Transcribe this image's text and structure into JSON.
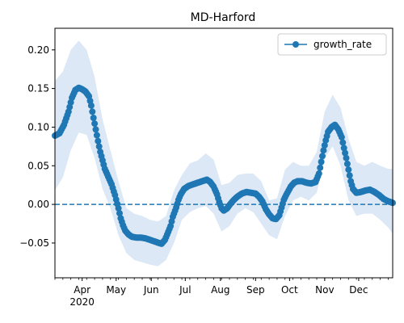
{
  "chart_data": {
    "type": "line",
    "title": "MD-Harford",
    "xlabel": "",
    "ylabel": "",
    "x_axis": {
      "kind": "date",
      "range": [
        "2020-03-08",
        "2020-12-31"
      ],
      "month_tick_labels": [
        {
          "date": "2020-04-01",
          "label": "Apr",
          "sublabel": "2020"
        },
        {
          "date": "2020-05-01",
          "label": "May"
        },
        {
          "date": "2020-06-01",
          "label": "Jun"
        },
        {
          "date": "2020-07-01",
          "label": "Jul"
        },
        {
          "date": "2020-08-01",
          "label": "Aug"
        },
        {
          "date": "2020-09-01",
          "label": "Sep"
        },
        {
          "date": "2020-10-01",
          "label": "Oct"
        },
        {
          "date": "2020-11-01",
          "label": "Nov"
        },
        {
          "date": "2020-12-01",
          "label": "Dec"
        }
      ]
    },
    "y_axis": {
      "range": [
        -0.095,
        0.228
      ],
      "ticks": [
        -0.05,
        0.0,
        0.05,
        0.1,
        0.15,
        0.2
      ],
      "tick_labels": [
        "−0.05",
        "0.00",
        "0.05",
        "0.10",
        "0.15",
        "0.20"
      ]
    },
    "grid": false,
    "legend": {
      "position": "top-right",
      "entries": [
        "growth_rate"
      ]
    },
    "reference_line": {
      "y": 0.0,
      "style": "dashed"
    },
    "colors": {
      "series": "#1f77b4",
      "band": "#dce8f5"
    },
    "series": [
      {
        "name": "growth_rate",
        "marker": "circle",
        "points": [
          [
            "2020-03-08",
            0.089
          ],
          [
            "2020-03-12",
            0.092
          ],
          [
            "2020-03-16",
            0.103
          ],
          [
            "2020-03-20",
            0.12
          ],
          [
            "2020-03-23",
            0.138
          ],
          [
            "2020-03-26",
            0.148
          ],
          [
            "2020-03-29",
            0.151
          ],
          [
            "2020-04-01",
            0.149
          ],
          [
            "2020-04-04",
            0.146
          ],
          [
            "2020-04-07",
            0.14
          ],
          [
            "2020-04-09",
            0.128
          ],
          [
            "2020-04-11",
            0.112
          ],
          [
            "2020-04-13",
            0.097
          ],
          [
            "2020-04-15",
            0.082
          ],
          [
            "2020-04-17",
            0.068
          ],
          [
            "2020-04-19",
            0.057
          ],
          [
            "2020-04-21",
            0.046
          ],
          [
            "2020-04-24",
            0.036
          ],
          [
            "2020-04-27",
            0.026
          ],
          [
            "2020-04-30",
            0.012
          ],
          [
            "2020-05-03",
            -0.005
          ],
          [
            "2020-05-05",
            -0.018
          ],
          [
            "2020-05-07",
            -0.027
          ],
          [
            "2020-05-09",
            -0.034
          ],
          [
            "2020-05-12",
            -0.039
          ],
          [
            "2020-05-15",
            -0.042
          ],
          [
            "2020-05-19",
            -0.043
          ],
          [
            "2020-05-23",
            -0.043
          ],
          [
            "2020-05-27",
            -0.044
          ],
          [
            "2020-05-31",
            -0.046
          ],
          [
            "2020-06-04",
            -0.048
          ],
          [
            "2020-06-08",
            -0.05
          ],
          [
            "2020-06-10",
            -0.051
          ],
          [
            "2020-06-13",
            -0.046
          ],
          [
            "2020-06-15",
            -0.039
          ],
          [
            "2020-06-18",
            -0.028
          ],
          [
            "2020-06-20",
            -0.016
          ],
          [
            "2020-06-23",
            -0.004
          ],
          [
            "2020-06-25",
            0.006
          ],
          [
            "2020-06-27",
            0.013
          ],
          [
            "2020-06-30",
            0.02
          ],
          [
            "2020-07-04",
            0.024
          ],
          [
            "2020-07-08",
            0.026
          ],
          [
            "2020-07-12",
            0.028
          ],
          [
            "2020-07-16",
            0.03
          ],
          [
            "2020-07-20",
            0.032
          ],
          [
            "2020-07-23",
            0.029
          ],
          [
            "2020-07-26",
            0.023
          ],
          [
            "2020-07-29",
            0.013
          ],
          [
            "2020-07-31",
            0.003
          ],
          [
            "2020-08-02",
            -0.005
          ],
          [
            "2020-08-04",
            -0.008
          ],
          [
            "2020-08-07",
            -0.005
          ],
          [
            "2020-08-10",
            0.001
          ],
          [
            "2020-08-13",
            0.006
          ],
          [
            "2020-08-16",
            0.01
          ],
          [
            "2020-08-20",
            0.014
          ],
          [
            "2020-08-24",
            0.016
          ],
          [
            "2020-08-28",
            0.015
          ],
          [
            "2020-09-01",
            0.014
          ],
          [
            "2020-09-04",
            0.01
          ],
          [
            "2020-09-07",
            0.004
          ],
          [
            "2020-09-10",
            -0.006
          ],
          [
            "2020-09-13",
            -0.013
          ],
          [
            "2020-09-16",
            -0.018
          ],
          [
            "2020-09-19",
            -0.019
          ],
          [
            "2020-09-22",
            -0.014
          ],
          [
            "2020-09-24",
            -0.004
          ],
          [
            "2020-09-26",
            0.006
          ],
          [
            "2020-09-29",
            0.015
          ],
          [
            "2020-10-02",
            0.023
          ],
          [
            "2020-10-05",
            0.028
          ],
          [
            "2020-10-08",
            0.03
          ],
          [
            "2020-10-12",
            0.03
          ],
          [
            "2020-10-16",
            0.028
          ],
          [
            "2020-10-20",
            0.027
          ],
          [
            "2020-10-24",
            0.029
          ],
          [
            "2020-10-27",
            0.04
          ],
          [
            "2020-10-29",
            0.055
          ],
          [
            "2020-10-31",
            0.07
          ],
          [
            "2020-11-02",
            0.083
          ],
          [
            "2020-11-04",
            0.094
          ],
          [
            "2020-11-07",
            0.1
          ],
          [
            "2020-11-10",
            0.103
          ],
          [
            "2020-11-13",
            0.097
          ],
          [
            "2020-11-16",
            0.087
          ],
          [
            "2020-11-18",
            0.073
          ],
          [
            "2020-11-20",
            0.06
          ],
          [
            "2020-11-22",
            0.045
          ],
          [
            "2020-11-24",
            0.03
          ],
          [
            "2020-11-26",
            0.02
          ],
          [
            "2020-11-29",
            0.015
          ],
          [
            "2020-12-03",
            0.016
          ],
          [
            "2020-12-07",
            0.018
          ],
          [
            "2020-12-11",
            0.019
          ],
          [
            "2020-12-15",
            0.016
          ],
          [
            "2020-12-19",
            0.012
          ],
          [
            "2020-12-23",
            0.007
          ],
          [
            "2020-12-27",
            0.004
          ],
          [
            "2020-12-31",
            0.002
          ]
        ],
        "band": [
          [
            "2020-03-08",
            0.018,
            0.16
          ],
          [
            "2020-03-15",
            0.035,
            0.172
          ],
          [
            "2020-03-22",
            0.07,
            0.2
          ],
          [
            "2020-03-29",
            0.093,
            0.212
          ],
          [
            "2020-04-05",
            0.09,
            0.2
          ],
          [
            "2020-04-12",
            0.06,
            0.165
          ],
          [
            "2020-04-19",
            0.02,
            0.11
          ],
          [
            "2020-04-26",
            -0.005,
            0.07
          ],
          [
            "2020-05-03",
            -0.04,
            0.03
          ],
          [
            "2020-05-10",
            -0.063,
            -0.005
          ],
          [
            "2020-05-17",
            -0.072,
            -0.012
          ],
          [
            "2020-05-24",
            -0.075,
            -0.015
          ],
          [
            "2020-05-31",
            -0.078,
            -0.02
          ],
          [
            "2020-06-07",
            -0.08,
            -0.022
          ],
          [
            "2020-06-14",
            -0.072,
            -0.015
          ],
          [
            "2020-06-21",
            -0.05,
            0.018
          ],
          [
            "2020-06-28",
            -0.02,
            0.038
          ],
          [
            "2020-07-05",
            -0.01,
            0.053
          ],
          [
            "2020-07-12",
            -0.005,
            0.057
          ],
          [
            "2020-07-19",
            -0.002,
            0.066
          ],
          [
            "2020-07-26",
            -0.012,
            0.058
          ],
          [
            "2020-08-02",
            -0.035,
            0.025
          ],
          [
            "2020-08-09",
            -0.028,
            0.028
          ],
          [
            "2020-08-16",
            -0.012,
            0.038
          ],
          [
            "2020-08-23",
            -0.005,
            0.04
          ],
          [
            "2020-08-30",
            -0.01,
            0.04
          ],
          [
            "2020-09-06",
            -0.025,
            0.03
          ],
          [
            "2020-09-13",
            -0.04,
            0.005
          ],
          [
            "2020-09-20",
            -0.045,
            0.008
          ],
          [
            "2020-09-27",
            -0.015,
            0.045
          ],
          [
            "2020-10-04",
            0.005,
            0.055
          ],
          [
            "2020-10-11",
            0.01,
            0.05
          ],
          [
            "2020-10-18",
            0.005,
            0.05
          ],
          [
            "2020-10-25",
            0.015,
            0.068
          ],
          [
            "2020-11-01",
            0.06,
            0.12
          ],
          [
            "2020-11-08",
            0.075,
            0.142
          ],
          [
            "2020-11-15",
            0.05,
            0.125
          ],
          [
            "2020-11-22",
            0.005,
            0.085
          ],
          [
            "2020-11-29",
            -0.015,
            0.055
          ],
          [
            "2020-12-06",
            -0.012,
            0.05
          ],
          [
            "2020-12-13",
            -0.012,
            0.055
          ],
          [
            "2020-12-20",
            -0.02,
            0.05
          ],
          [
            "2020-12-27",
            -0.03,
            0.046
          ],
          [
            "2020-12-31",
            -0.038,
            0.046
          ]
        ]
      }
    ]
  }
}
